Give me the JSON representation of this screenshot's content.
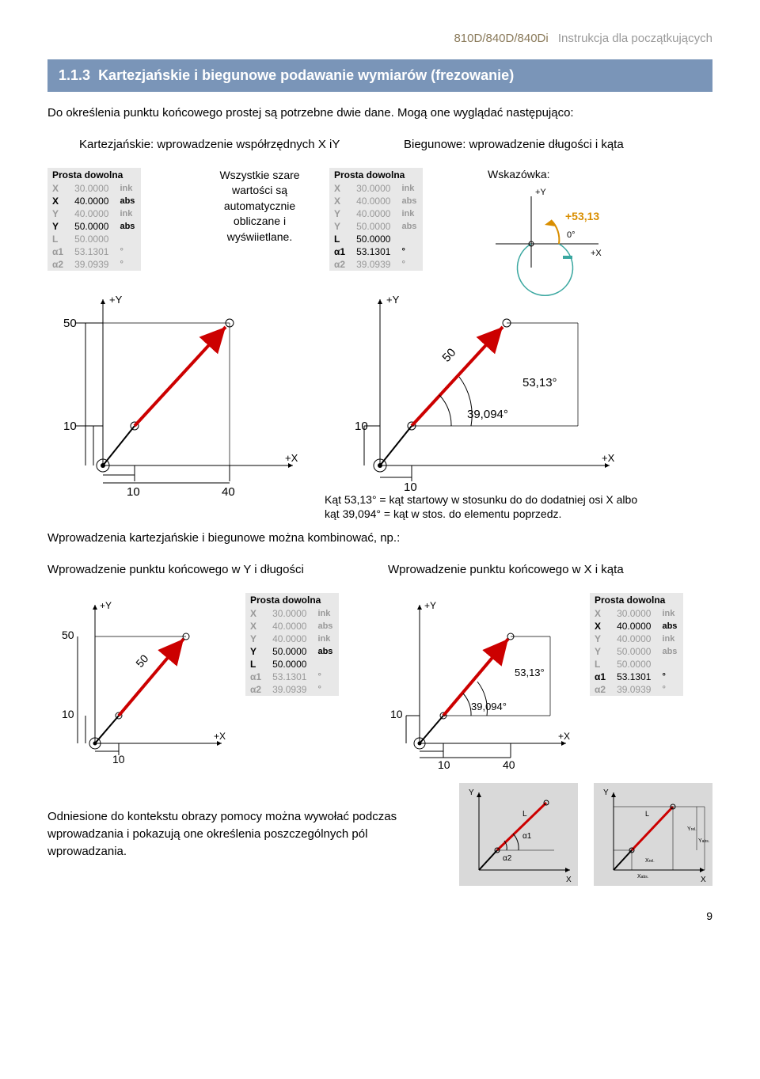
{
  "header": {
    "left": "810D/840D/840Di",
    "right": "Instrukcja dla początkujących"
  },
  "section": {
    "number": "1.1.3",
    "title": "Kartezjańskie i biegunowe podawanie wymiarów (frezowanie)"
  },
  "intro1": "Do określenia punktu końcowego prostej są potrzebne dwie dane. Mogą one wyglądać następująco:",
  "leftHead": "Kartezjańskie: wprowadzenie współrzędnych X iY",
  "rightHead": "Biegunowe: wprowadzenie długości i kąta",
  "panelTitle": "Prosta dowolna",
  "panelA": {
    "rows": [
      {
        "lab": "X",
        "val": "30.0000",
        "unit": "ink",
        "gray": true
      },
      {
        "lab": "X",
        "val": "40.0000",
        "unit": "abs",
        "gray": false
      },
      {
        "lab": "Y",
        "val": "40.0000",
        "unit": "ink",
        "gray": true
      },
      {
        "lab": "Y",
        "val": "50.0000",
        "unit": "abs",
        "gray": false
      },
      {
        "lab": "L",
        "val": "50.0000",
        "unit": "",
        "gray": true
      },
      {
        "lab": "α1",
        "val": "53.1301",
        "unit": "°",
        "gray": true
      },
      {
        "lab": "α2",
        "val": "39.0939",
        "unit": "°",
        "gray": true
      }
    ]
  },
  "sideNote": "Wszystkie szare wartości są automatycznie obliczane i wyświietlane.",
  "panelB": {
    "rows": [
      {
        "lab": "X",
        "val": "30.0000",
        "unit": "ink",
        "gray": true
      },
      {
        "lab": "X",
        "val": "40.0000",
        "unit": "abs",
        "gray": true
      },
      {
        "lab": "Y",
        "val": "40.0000",
        "unit": "ink",
        "gray": true
      },
      {
        "lab": "Y",
        "val": "50.0000",
        "unit": "abs",
        "gray": true
      },
      {
        "lab": "L",
        "val": "50.0000",
        "unit": "",
        "gray": false
      },
      {
        "lab": "α1",
        "val": "53.1301",
        "unit": "°",
        "gray": false
      },
      {
        "lab": "α2",
        "val": "39.0939",
        "unit": "°",
        "gray": true
      }
    ]
  },
  "hintLabel": "Wskazówka:",
  "hintAngle": "+53,13",
  "diagA": {
    "yTop": "50",
    "yBot": "10",
    "xL": "10",
    "xR": "40"
  },
  "diagB": {
    "len": "50",
    "ang1": "53,13°",
    "ang2": "39,094°",
    "yBot": "10",
    "xL": "10"
  },
  "captionB": "Kąt 53,13° = kąt startowy w stosunku do do dodatniej osi X albo\nkąt 39,094° = kąt w stos. do elementu poprzedz.",
  "mixLine": "Wprowadzenia kartezjańskie i biegunowe można kombinować, np.:",
  "mixLeftHead": "Wprowadzenie punktu końcowego w Y i długości",
  "mixRightHead": "Wprowadzenie punktu końcowego w X i kąta",
  "panelC": {
    "rows": [
      {
        "lab": "X",
        "val": "30.0000",
        "unit": "ink",
        "gray": true
      },
      {
        "lab": "X",
        "val": "40.0000",
        "unit": "abs",
        "gray": true
      },
      {
        "lab": "Y",
        "val": "40.0000",
        "unit": "ink",
        "gray": true
      },
      {
        "lab": "Y",
        "val": "50.0000",
        "unit": "abs",
        "gray": false
      },
      {
        "lab": "L",
        "val": "50.0000",
        "unit": "",
        "gray": false
      },
      {
        "lab": "α1",
        "val": "53.1301",
        "unit": "°",
        "gray": true
      },
      {
        "lab": "α2",
        "val": "39.0939",
        "unit": "°",
        "gray": true
      }
    ]
  },
  "panelD": {
    "rows": [
      {
        "lab": "X",
        "val": "30.0000",
        "unit": "ink",
        "gray": true
      },
      {
        "lab": "X",
        "val": "40.0000",
        "unit": "abs",
        "gray": false
      },
      {
        "lab": "Y",
        "val": "40.0000",
        "unit": "ink",
        "gray": true
      },
      {
        "lab": "Y",
        "val": "50.0000",
        "unit": "abs",
        "gray": true
      },
      {
        "lab": "L",
        "val": "50.0000",
        "unit": "",
        "gray": true
      },
      {
        "lab": "α1",
        "val": "53.1301",
        "unit": "°",
        "gray": false
      },
      {
        "lab": "α2",
        "val": "39.0939",
        "unit": "°",
        "gray": true
      }
    ]
  },
  "diagC": {
    "yTop": "50",
    "yBot": "10",
    "xL": "10",
    "len": "50"
  },
  "diagD": {
    "yBot": "10",
    "xL": "10",
    "xR": "40",
    "ang1": "53,13°",
    "ang2": "39,094°"
  },
  "bottomText": "Odniesione do kontekstu obrazy pomocy można wywołać podczas wprowadzania i pokazują one określenia poszczególnych pól wprowadzania.",
  "help1": {
    "a1": "α1",
    "a2": "α2",
    "L": "L"
  },
  "help2": {
    "L": "L",
    "yrel": "Y",
    "yabs": "Y",
    "xrel": "X",
    "xabs": "X",
    "rel": "rel.",
    "abs": "abs."
  },
  "pageNum": "9",
  "colors": {
    "titleBg": "#7a95b8",
    "gold": "#8a7a5a",
    "panel": "#e8e8e8",
    "gray": "#999999",
    "red": "#cc0000",
    "teal": "#3aa7a0",
    "orange": "#d98e00",
    "lightPanel": "#d9d9d9"
  }
}
